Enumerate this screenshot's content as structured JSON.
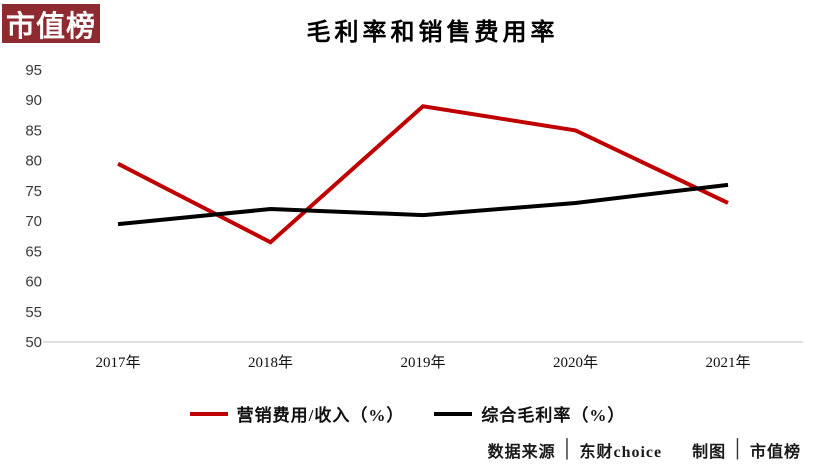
{
  "logo": {
    "text": "市值榜",
    "bg_color": "#8e2b31",
    "text_color": "#ffffff"
  },
  "title": "毛利率和销售费用率",
  "chart_data": {
    "type": "line",
    "title": "毛利率和销售费用率",
    "categories": [
      "2017年",
      "2018年",
      "2019年",
      "2020年",
      "2021年"
    ],
    "series": [
      {
        "name": "营销费用/收入（%）",
        "color": "#c00000",
        "values": [
          79.5,
          66.5,
          89,
          85,
          73
        ]
      },
      {
        "name": "综合毛利率（%）",
        "color": "#000000",
        "values": [
          69.5,
          72,
          71,
          73,
          76
        ]
      }
    ],
    "xlabel": "",
    "ylabel": "",
    "ylim": [
      50,
      95
    ],
    "y_ticks": [
      95,
      90,
      85,
      80,
      75,
      70,
      65,
      60,
      55,
      50
    ],
    "grid": false,
    "axis_line_color": "#cccccc",
    "legend_position": "bottom"
  },
  "footer": {
    "source_label": "数据来源",
    "separator": "│",
    "source_value": "东财choice",
    "credit_label": "制图",
    "credit_value": "市值榜"
  }
}
